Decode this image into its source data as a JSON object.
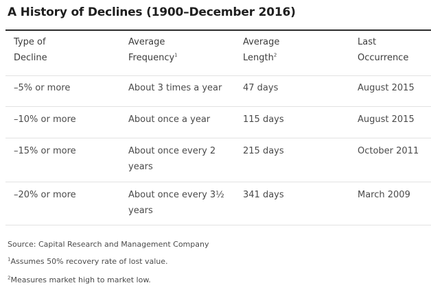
{
  "title": "A History of Declines (1900–December 2016)",
  "headers": [
    {
      "line1": "Type of",
      "line2": "Decline",
      "sup": ""
    },
    {
      "line1": "Average",
      "line2": "Frequency",
      "sup": "1"
    },
    {
      "line1": "Average",
      "line2": "Length",
      "sup": "2"
    },
    {
      "line1": "Last",
      "line2": "Occurrence",
      "sup": ""
    }
  ],
  "rows": [
    {
      "decline": "–5% or more",
      "frequency": "About 3 times a year",
      "length": "47 days",
      "last": "August 2015"
    },
    {
      "decline": "–10% or more",
      "frequency": "About once a year",
      "length": "115 days",
      "last": "August 2015"
    },
    {
      "decline": "–15% or more",
      "frequency": "About once every 2 years",
      "length": "215 days",
      "last": "October 2011"
    },
    {
      "decline": "–20% or more",
      "frequency": "About once every 3½ years",
      "length": "341 days",
      "last": "March 2009"
    }
  ],
  "notes": {
    "source": "Source: Capital Research and Management Company",
    "note1_mark": "1",
    "note1_text": "Assumes 50% recovery rate of lost value.",
    "note2_mark": "2",
    "note2_text": "Measures market high to market low."
  }
}
